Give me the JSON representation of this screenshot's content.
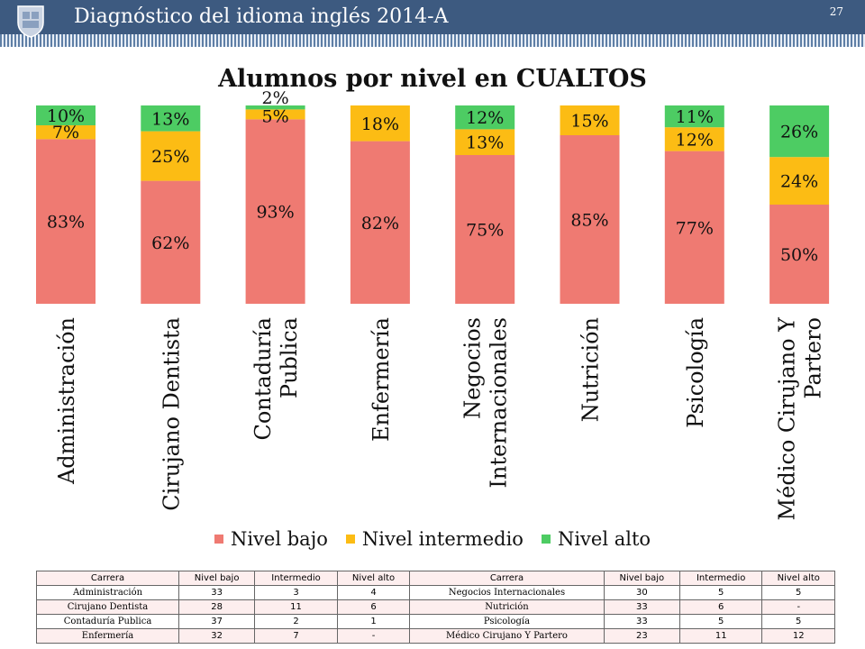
{
  "header": {
    "title": "Diagnóstico del idioma inglés 2014-A",
    "page_number": "27",
    "background_color": "#3d5a80",
    "logo_icon": "university-crest-icon"
  },
  "chart_data": {
    "type": "bar",
    "stacked": true,
    "title": "Alumnos por nivel en CUALTOS",
    "categories": [
      [
        "Administración"
      ],
      [
        "Cirujano Dentista"
      ],
      [
        "Contaduría",
        "Publica"
      ],
      [
        "Enfermería"
      ],
      [
        "Negocios",
        "Internacionales"
      ],
      [
        "Nutrición"
      ],
      [
        "Psicología"
      ],
      [
        "Médico Cirujano Y",
        "Partero"
      ]
    ],
    "series": [
      {
        "name": "Nivel bajo",
        "color": "#ef7a72",
        "values": [
          83,
          62,
          93,
          82,
          75,
          85,
          77,
          50
        ],
        "labels": [
          "83%",
          "62%",
          "93%",
          "82%",
          "75%",
          "85%",
          "77%",
          "50%"
        ]
      },
      {
        "name": "Nivel intermedio",
        "color": "#fcbc14",
        "values": [
          7,
          25,
          5,
          18,
          13,
          15,
          12,
          24
        ],
        "labels": [
          "7%",
          "25%",
          "5%",
          "18%",
          "13%",
          "15%",
          "12%",
          "24%"
        ]
      },
      {
        "name": "Nivel alto",
        "color": "#4dcc63",
        "values": [
          10,
          13,
          2,
          0,
          12,
          0,
          11,
          26
        ],
        "labels": [
          "10%",
          "13%",
          "2%",
          "",
          "12%",
          "",
          "11%",
          "26%"
        ]
      }
    ],
    "ylim": [
      0,
      100
    ],
    "grid": false,
    "legend_position": "bottom"
  },
  "table": {
    "headers": [
      "Carrera",
      "Nivel bajo",
      "Intermedio",
      "Nivel alto",
      "Carrera",
      "Nivel bajo",
      "Intermedio",
      "Nivel alto"
    ],
    "rows": [
      [
        "Administración",
        "33",
        "3",
        "4",
        "Negocios Internacionales",
        "30",
        "5",
        "5"
      ],
      [
        "Cirujano Dentista",
        "28",
        "11",
        "6",
        "Nutrición",
        "33",
        "6",
        "-"
      ],
      [
        "Contaduría Publica",
        "37",
        "2",
        "1",
        "Psicología",
        "33",
        "5",
        "5"
      ],
      [
        "Enfermería",
        "32",
        "7",
        "-",
        "Médico Cirujano Y Partero",
        "23",
        "11",
        "12"
      ]
    ]
  }
}
